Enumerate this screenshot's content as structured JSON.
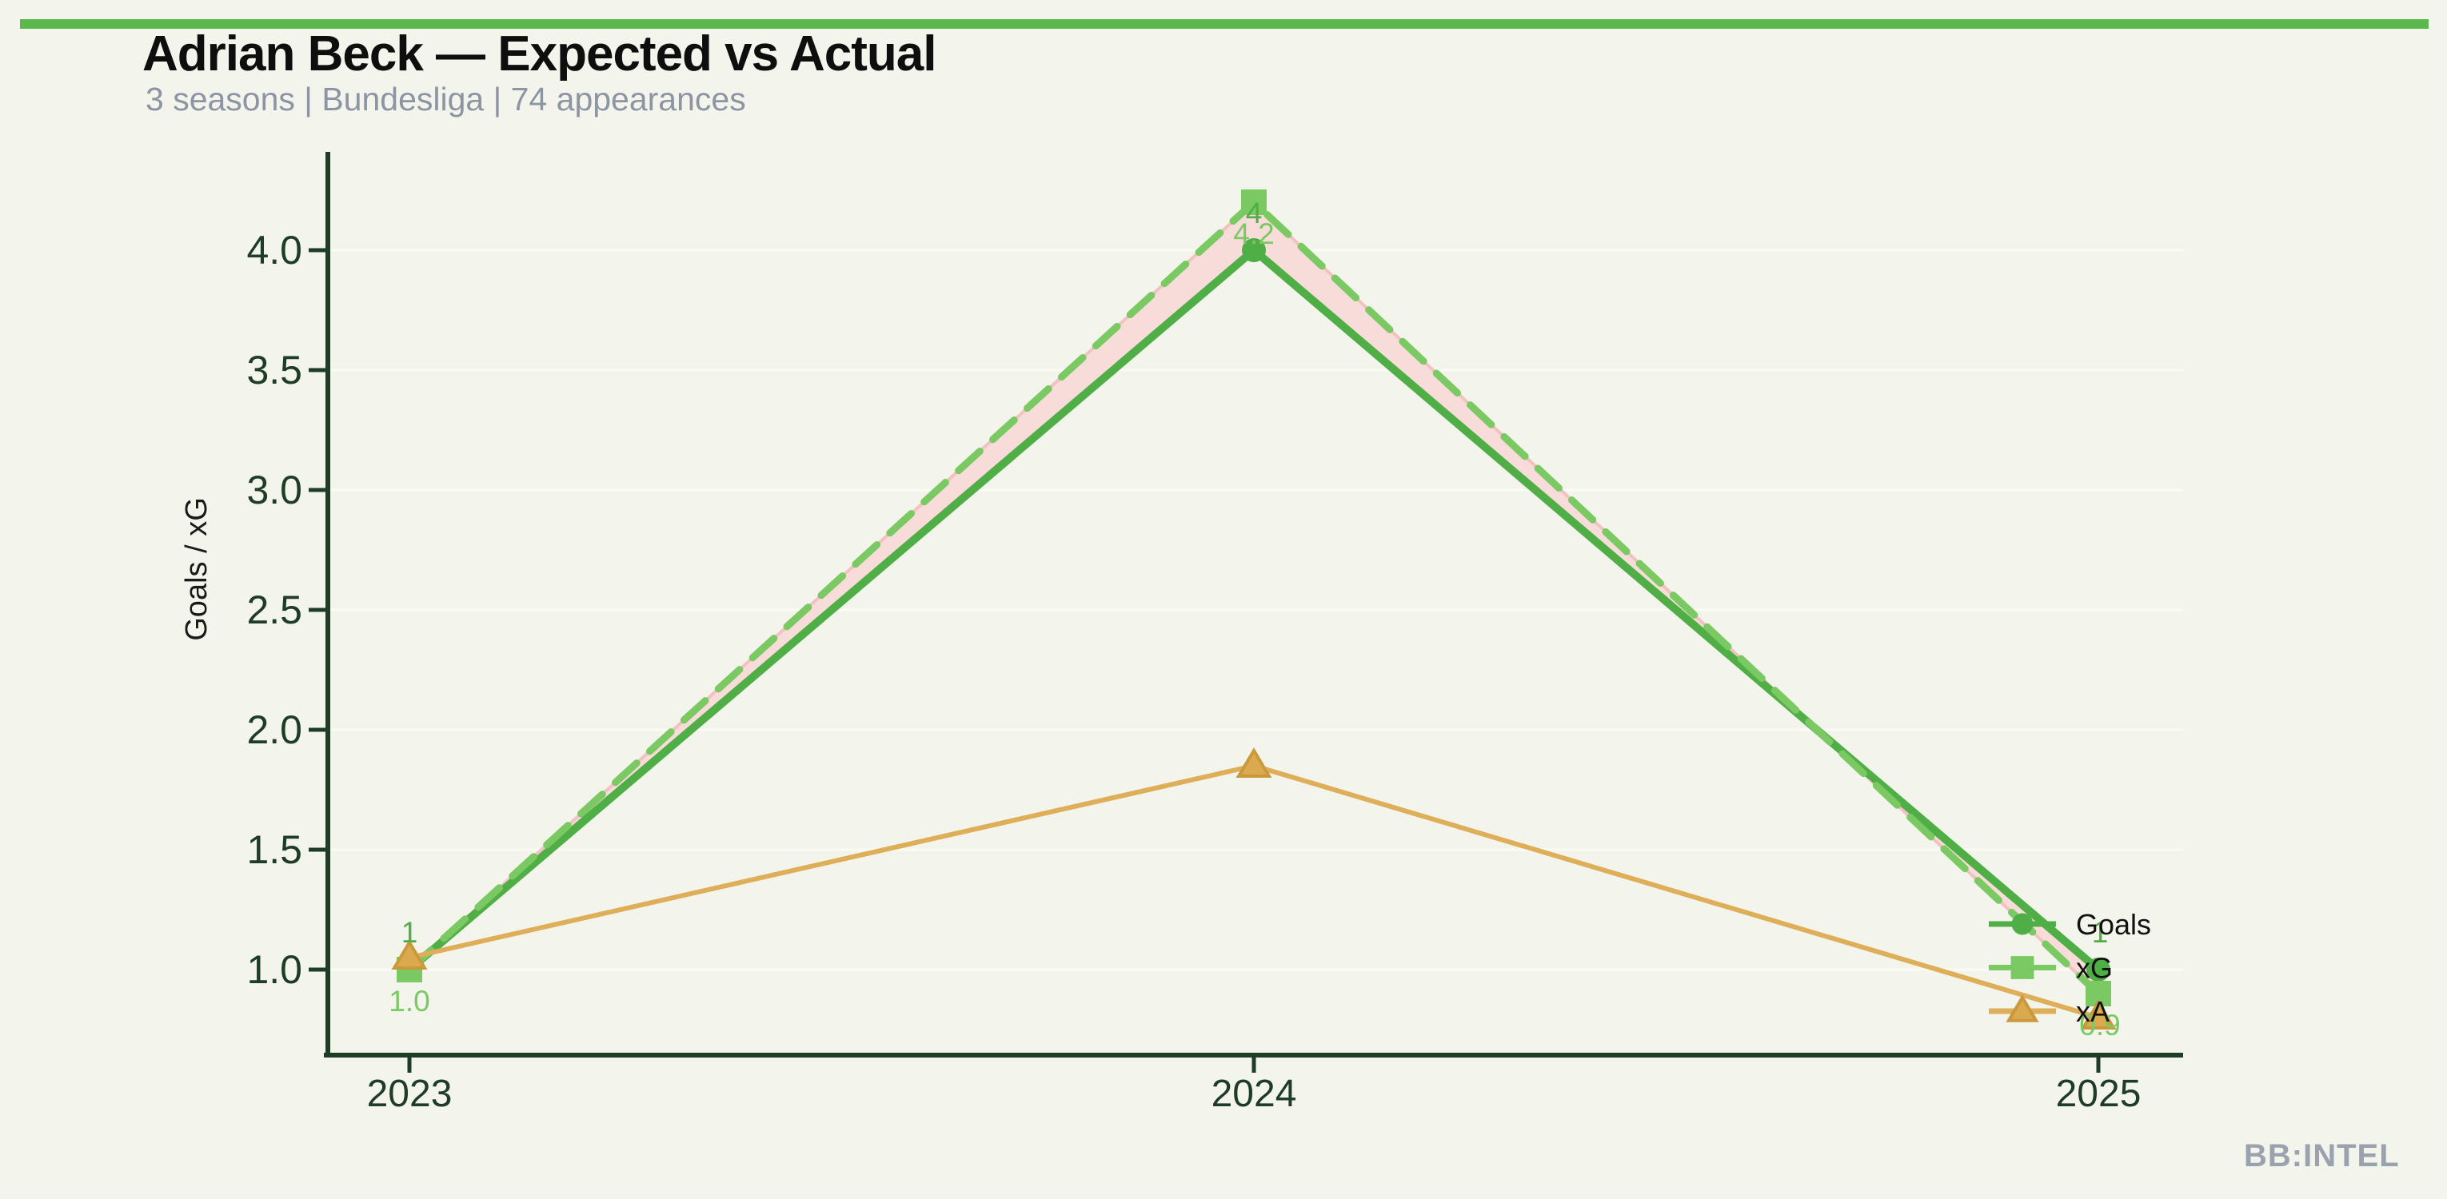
{
  "header": {
    "title": "Adrian Beck — Expected vs Actual",
    "subtitle": "3 seasons | Bundesliga | 74 appearances",
    "accent_color": "#5ab84d"
  },
  "footer": {
    "brand": "BB:INTEL"
  },
  "chart_data": {
    "type": "line",
    "title": "Adrian Beck — Expected vs Actual",
    "subtitle": "3 seasons | Bundesliga | 74 appearances",
    "xlabel": "",
    "ylabel": "Goals / xG",
    "categories": [
      "2023",
      "2024",
      "2025"
    ],
    "yticks": [
      "1.0",
      "1.5",
      "2.0",
      "2.5",
      "3.0",
      "3.5",
      "4.0"
    ],
    "ylim": [
      0.64,
      4.4
    ],
    "grid": "faint-horizontal",
    "legend_position": "right-inside-end",
    "axis_color": "#1e3c26",
    "grid_color": "#fafbf2",
    "text_color": "#1a1a1a",
    "series": [
      {
        "name": "Goals",
        "values": [
          1,
          4,
          1
        ],
        "point_labels": [
          "1",
          "4",
          "1"
        ],
        "label_side": "above",
        "color": "#4fae45",
        "marker": "circle",
        "line": "solid",
        "thickness": 10
      },
      {
        "name": "xG",
        "values": [
          1.0,
          4.2,
          0.9
        ],
        "point_labels": [
          "1.0",
          "4.2",
          "0.9"
        ],
        "label_side": "below",
        "color": "#7ac963",
        "marker": "square",
        "line": "dashed",
        "thickness": 9
      },
      {
        "name": "xA",
        "values": [
          1.05,
          1.85,
          0.8
        ],
        "color": "#deae58",
        "marker": "triangle",
        "marker_fill": "#dcaa4e",
        "marker_stroke": "#c9993c",
        "line": "solid",
        "thickness": 6
      }
    ],
    "band": {
      "between": [
        "Goals",
        "xG"
      ],
      "fill": "#f8dcda",
      "edge": "#f2c2c0"
    }
  }
}
